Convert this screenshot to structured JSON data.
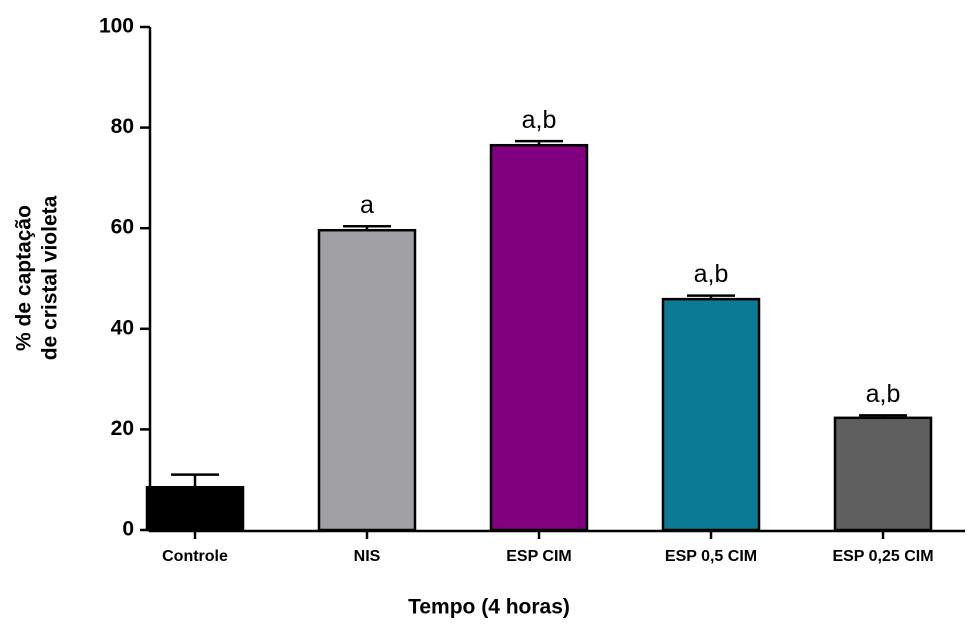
{
  "chart_data": {
    "type": "bar",
    "xlabel": "Tempo (4 horas)",
    "ylabel": [
      "% de captação",
      "de cristal violeta"
    ],
    "categories": [
      "Controle",
      "NIS",
      "ESP CIM",
      "ESP 0,5 CIM",
      "ESP 0,25 CIM"
    ],
    "values": [
      8.5,
      59.6,
      76.5,
      45.9,
      22.3
    ],
    "errors": [
      2.5,
      0.8,
      0.8,
      0.7,
      0.5
    ],
    "annotations": [
      null,
      "a",
      "a,b",
      "a,b",
      "a,b"
    ],
    "colors": [
      "#000000",
      "#a0a0a5",
      "#800080",
      "#0b7a94",
      "#5f5f5f"
    ],
    "ylim": [
      0,
      100
    ],
    "yticks": [
      0,
      20,
      40,
      60,
      80,
      100
    ],
    "grid": false
  }
}
